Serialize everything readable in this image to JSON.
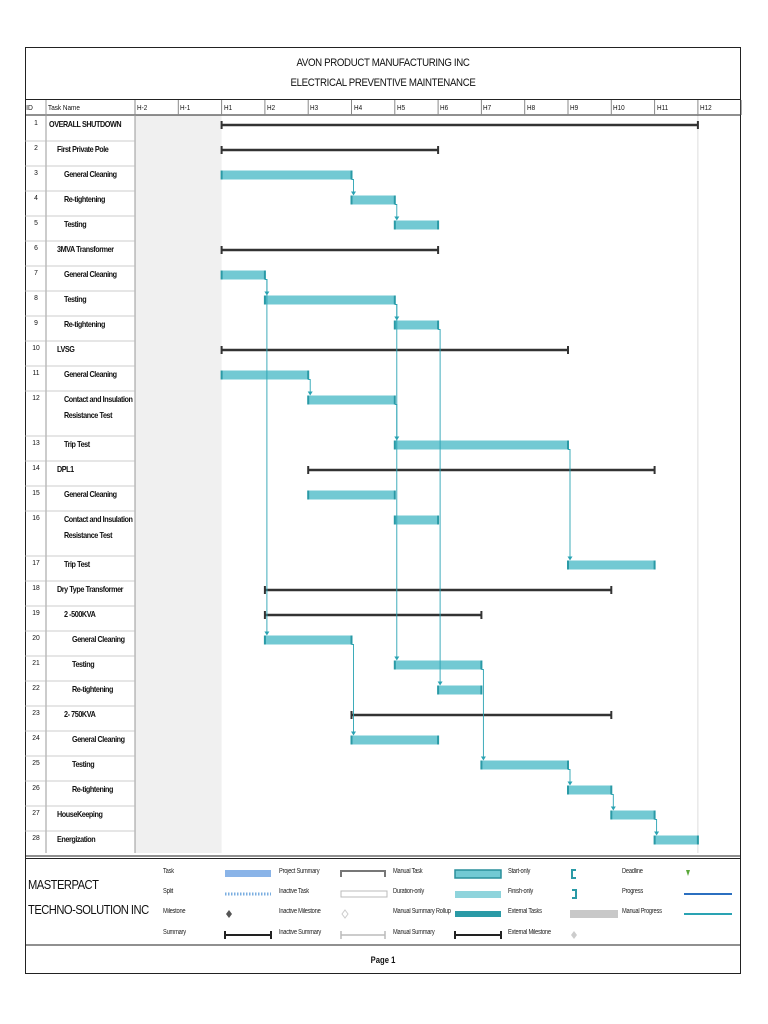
{
  "header": {
    "title_line1": "AVON PRODUCT MANUFACTURING INC",
    "title_line2": "ELECTRICAL PREVENTIVE MAINTENANCE"
  },
  "table": {
    "id_header": "ID",
    "name_header": "Task Name"
  },
  "colors": {
    "task_bar": "#72c9d3",
    "task_bar_edge": "#2a9aa6",
    "summary_bar": "#333333",
    "link_line": "#2aa3b3",
    "grid": "#bbbbbb",
    "shade": "#f0f0f0"
  },
  "chart_data": {
    "type": "gantt",
    "timescale": [
      "H-2",
      "H-1",
      "H1",
      "H2",
      "H3",
      "H4",
      "H5",
      "H6",
      "H7",
      "H8",
      "H9",
      "H10",
      "H11",
      "H12"
    ],
    "time_unit": "hour",
    "tasks": [
      {
        "id": 1,
        "name": "OVERALL SHUTDOWN",
        "indent": 0,
        "kind": "summary",
        "start": 0,
        "end": 11
      },
      {
        "id": 2,
        "name": "First Private Pole",
        "indent": 1,
        "kind": "summary",
        "start": 0,
        "end": 5
      },
      {
        "id": 3,
        "name": "General Cleaning",
        "indent": 2,
        "kind": "task",
        "start": 0,
        "end": 3
      },
      {
        "id": 4,
        "name": "Re-tightening",
        "indent": 2,
        "kind": "task",
        "start": 3,
        "end": 4,
        "pred": 3
      },
      {
        "id": 5,
        "name": "Testing",
        "indent": 2,
        "kind": "task",
        "start": 4,
        "end": 5,
        "pred": 4
      },
      {
        "id": 6,
        "name": "3MVA Transformer",
        "indent": 1,
        "kind": "summary",
        "start": 0,
        "end": 5
      },
      {
        "id": 7,
        "name": "General Cleaning",
        "indent": 2,
        "kind": "task",
        "start": 0,
        "end": 1
      },
      {
        "id": 8,
        "name": "Testing",
        "indent": 2,
        "kind": "task",
        "start": 1,
        "end": 4,
        "pred": 7
      },
      {
        "id": 9,
        "name": "Re-tightening",
        "indent": 2,
        "kind": "task",
        "start": 4,
        "end": 5,
        "pred": 8
      },
      {
        "id": 10,
        "name": "LVSG",
        "indent": 1,
        "kind": "summary",
        "start": 0,
        "end": 8
      },
      {
        "id": 11,
        "name": "General Cleaning",
        "indent": 2,
        "kind": "task",
        "start": 0,
        "end": 2
      },
      {
        "id": 12,
        "name": "Contact and Insulation|Resistance Test",
        "indent": 2,
        "kind": "task",
        "start": 2,
        "end": 4,
        "pred": 11,
        "tall": true
      },
      {
        "id": 13,
        "name": "Trip Test",
        "indent": 2,
        "kind": "task",
        "start": 4,
        "end": 8,
        "pred": 12
      },
      {
        "id": 14,
        "name": "DPL1",
        "indent": 1,
        "kind": "summary",
        "start": 2,
        "end": 10
      },
      {
        "id": 15,
        "name": "General Cleaning",
        "indent": 2,
        "kind": "task",
        "start": 2,
        "end": 4
      },
      {
        "id": 16,
        "name": "Contact and Insulation|Resistance Test",
        "indent": 2,
        "kind": "task",
        "start": 4,
        "end": 5,
        "tall": true
      },
      {
        "id": 17,
        "name": "Trip Test",
        "indent": 2,
        "kind": "task",
        "start": 8,
        "end": 10,
        "pred": 13
      },
      {
        "id": 18,
        "name": "Dry Type Transformer",
        "indent": 1,
        "kind": "summary",
        "start": 1,
        "end": 9
      },
      {
        "id": 19,
        "name": "2 -500KVA",
        "indent": 2,
        "kind": "summary",
        "start": 1,
        "end": 6
      },
      {
        "id": 20,
        "name": "General Cleaning",
        "indent": 3,
        "kind": "task",
        "start": 1,
        "end": 3,
        "pred": 7
      },
      {
        "id": 21,
        "name": "Testing",
        "indent": 3,
        "kind": "task",
        "start": 4,
        "end": 6,
        "pred": 8
      },
      {
        "id": 22,
        "name": "Re-tightening",
        "indent": 3,
        "kind": "task",
        "start": 5,
        "end": 6,
        "pred": 9
      },
      {
        "id": 23,
        "name": "2- 750KVA",
        "indent": 2,
        "kind": "summary",
        "start": 3,
        "end": 9
      },
      {
        "id": 24,
        "name": "General Cleaning",
        "indent": 3,
        "kind": "task",
        "start": 3,
        "end": 5,
        "pred": 20
      },
      {
        "id": 25,
        "name": "Testing",
        "indent": 3,
        "kind": "task",
        "start": 6,
        "end": 8,
        "pred": 21
      },
      {
        "id": 26,
        "name": "Re-tightening",
        "indent": 3,
        "kind": "task",
        "start": 8,
        "end": 9,
        "pred": 25
      },
      {
        "id": 27,
        "name": "HouseKeeping",
        "indent": 1,
        "kind": "task",
        "start": 9,
        "end": 10,
        "pred": 26
      },
      {
        "id": 28,
        "name": "Energization",
        "indent": 1,
        "kind": "task",
        "start": 10,
        "end": 11,
        "pred": 27
      }
    ]
  },
  "legend": {
    "company_line1": "MASTERPACT",
    "company_line2": "TECHNO-SOLUTION INC",
    "items": [
      {
        "label": "Task",
        "key": "task"
      },
      {
        "label": "Split",
        "key": "split"
      },
      {
        "label": "Milestone",
        "key": "milestone"
      },
      {
        "label": "Summary",
        "key": "summary"
      },
      {
        "label": "Project Summary",
        "key": "project-summary"
      },
      {
        "label": "Inactive Task",
        "key": "inactive-task"
      },
      {
        "label": "Inactive Milestone",
        "key": "inactive-milestone"
      },
      {
        "label": "Inactive Summary",
        "key": "inactive-summary"
      },
      {
        "label": "Manual Task",
        "key": "manual-task"
      },
      {
        "label": "Duration-only",
        "key": "duration-only"
      },
      {
        "label": "Manual Summary Rollup",
        "key": "manual-summary-rollup"
      },
      {
        "label": "Manual Summary",
        "key": "manual-summary"
      },
      {
        "label": "Start-only",
        "key": "start-only"
      },
      {
        "label": "Finish-only",
        "key": "finish-only"
      },
      {
        "label": "External Tasks",
        "key": "external-tasks"
      },
      {
        "label": "External Milestone",
        "key": "external-milestone"
      },
      {
        "label": "Deadline",
        "key": "deadline"
      },
      {
        "label": "Progress",
        "key": "progress"
      },
      {
        "label": "Manual Progress",
        "key": "manual-progress"
      }
    ]
  },
  "footer": {
    "page": "Page 1"
  }
}
